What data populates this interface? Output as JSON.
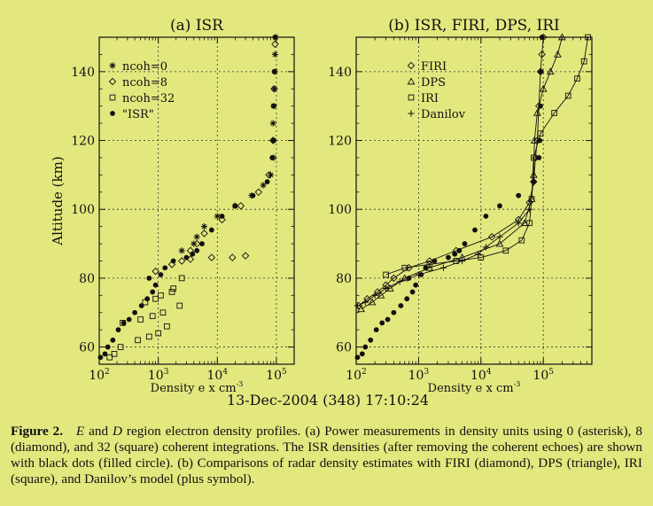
{
  "colors": {
    "background": "#e2e87e",
    "ink": "#111111",
    "grid": "#333333"
  },
  "footer_timestamp": "13-Dec-2004 (348) 17:10:24",
  "caption": {
    "label": "Figure 2.",
    "italic_E": "E",
    "and": " and ",
    "italic_D": "D",
    "text": " region electron density profiles. (a) Power measurements in density units using 0 (asterisk), 8 (diamond), and 32 (square) coherent integrations. The ISR densities (after removing the coherent echoes) are shown with black dots (filled circle). (b) Comparisons of radar density estimates with FIRI (diamond), DPS (triangle), IRI (square), and Danilov’s model (plus symbol)."
  },
  "chart_data": [
    {
      "type": "scatter",
      "title": "(a) ISR",
      "xlabel": "Density e x cm",
      "xlabel_sup": "-3",
      "ylabel": "Altitude (km)",
      "xscale": "log",
      "xlim": [
        100,
        200000
      ],
      "ylim": [
        55,
        150
      ],
      "yticks": [
        "60",
        "80",
        "100",
        "120",
        "140"
      ],
      "xtick_base": "10",
      "xtick_exps": [
        "2",
        "3",
        "4",
        "5"
      ],
      "legend_position": "top-left",
      "grid": true,
      "series": [
        {
          "name": "ncoh=0",
          "marker": "asterisk",
          "x": [
            2500,
            4000,
            4500,
            6000,
            10000,
            20000,
            38000,
            60000,
            80000,
            90000,
            90000,
            88000,
            90000,
            92000,
            95000,
            95000,
            98000
          ],
          "y": [
            88,
            90,
            92,
            95,
            98,
            101,
            104,
            107,
            110,
            115,
            120,
            125,
            130,
            135,
            140,
            145,
            150
          ]
        },
        {
          "name": "ncoh=8",
          "marker": "diamond",
          "x": [
            900,
            1700,
            2500,
            3500,
            8000,
            18000,
            30000,
            3500,
            4500,
            6000,
            12000,
            25000,
            50000,
            75000,
            88000,
            92000,
            95000
          ],
          "y": [
            82,
            84,
            85,
            85.5,
            86,
            86,
            86.5,
            88,
            90,
            93,
            97,
            101,
            105,
            110,
            120,
            135,
            148
          ]
        },
        {
          "name": "ncoh=32",
          "marker": "square",
          "x": [
            150,
            180,
            230,
            450,
            700,
            1000,
            1400,
            250,
            500,
            800,
            1200,
            2300,
            600,
            900,
            1100,
            1700,
            1800,
            2500
          ],
          "y": [
            57,
            58,
            60,
            62,
            63,
            64,
            66,
            67,
            68,
            69,
            70,
            72,
            73,
            74,
            75,
            76,
            77,
            80
          ]
        },
        {
          "name": "\"ISR\"",
          "marker": "filled-circle",
          "x": [
            105,
            125,
            140,
            170,
            210,
            260,
            320,
            400,
            520,
            650,
            800,
            900,
            700,
            1100,
            1300,
            1800,
            3000,
            3800,
            4500,
            5500,
            8000,
            12000,
            20000,
            40000,
            70000,
            85000,
            88000,
            90000,
            92000,
            95000
          ],
          "y": [
            57,
            58,
            60,
            62,
            65,
            67,
            68,
            70,
            72,
            74,
            76,
            78,
            80,
            81,
            83,
            85,
            86,
            87,
            88,
            90,
            94,
            98,
            101,
            104,
            108,
            115,
            120,
            130,
            140,
            150
          ]
        }
      ]
    },
    {
      "type": "line",
      "title": "(b) ISR,  FIRI, DPS, IRI",
      "xlabel": "Density e x cm",
      "xlabel_sup": "-3",
      "xscale": "log",
      "xlim": [
        100,
        600000
      ],
      "ylim": [
        55,
        150
      ],
      "yticks": [
        "60",
        "80",
        "100",
        "120",
        "140"
      ],
      "xtick_base": "10",
      "xtick_exps": [
        "2",
        "3",
        "4",
        "5"
      ],
      "legend_position": "top-left",
      "grid": true,
      "series": [
        {
          "name": "FIRI",
          "marker": "diamond",
          "x": [
            110,
            150,
            220,
            300,
            400,
            700,
            1500,
            4000,
            15000,
            40000,
            60000,
            70000,
            75000,
            80000,
            85000,
            90000,
            95000,
            100000
          ],
          "y": [
            72,
            74,
            76,
            78,
            80,
            83,
            85,
            88,
            92,
            97,
            102,
            108,
            115,
            120,
            130,
            140,
            145,
            150
          ]
        },
        {
          "name": "DPS",
          "marker": "triangle",
          "x": [
            120,
            180,
            250,
            350,
            600,
            1500,
            5000,
            20000,
            50000,
            65000,
            70000,
            72000,
            80000,
            100000,
            130000,
            170000,
            200000
          ],
          "y": [
            71,
            73,
            75,
            77,
            80,
            83,
            86,
            90,
            96,
            103,
            110,
            120,
            128,
            135,
            140,
            145,
            150
          ]
        },
        {
          "name": "IRI",
          "marker": "square",
          "x": [
            300,
            600,
            1500,
            4000,
            10000,
            25000,
            45000,
            60000,
            65000,
            70000,
            90000,
            150000,
            250000,
            350000,
            450000,
            520000
          ],
          "y": [
            81,
            83,
            84,
            85,
            86,
            88,
            91,
            96,
            103,
            115,
            122,
            128,
            133,
            138,
            143,
            150
          ]
        },
        {
          "name": "Danilov",
          "marker": "plus",
          "x": [
            105,
            140,
            200,
            300,
            500,
            1000,
            2500,
            5000,
            9000,
            12000,
            20000,
            40000,
            60000
          ],
          "y": [
            72,
            73,
            75,
            77,
            79,
            81,
            83,
            85,
            87,
            89,
            92,
            96,
            100
          ]
        },
        {
          "name": "\"ISR\"",
          "marker": "filled-circle",
          "x": [
            105,
            125,
            140,
            170,
            210,
            260,
            320,
            400,
            520,
            650,
            800,
            900,
            700,
            1100,
            1300,
            1800,
            3000,
            3800,
            4500,
            5500,
            8000,
            12000,
            20000,
            40000,
            70000,
            85000,
            88000,
            90000,
            92000,
            95000
          ],
          "y": [
            57,
            58,
            60,
            62,
            65,
            67,
            68,
            70,
            72,
            74,
            76,
            78,
            80,
            81,
            83,
            85,
            86,
            87,
            88,
            90,
            94,
            98,
            101,
            104,
            108,
            115,
            120,
            130,
            140,
            150
          ]
        }
      ]
    }
  ]
}
